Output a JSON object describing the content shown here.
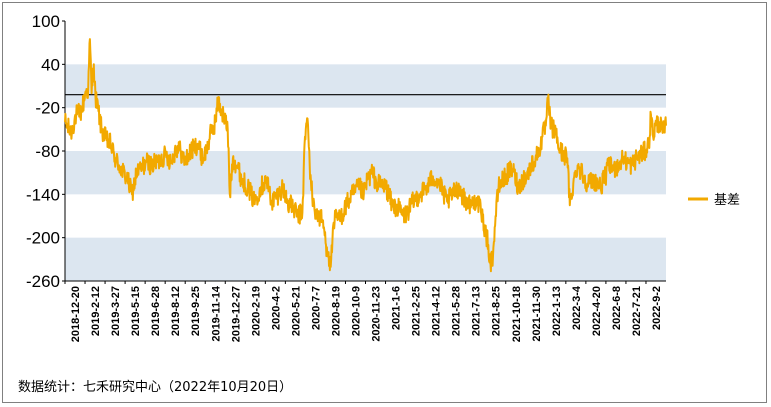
{
  "footer": {
    "source_text": "数据统计：七禾研究中心（2022年10月20日）"
  },
  "colors": {
    "series": "#F2A900",
    "band": "#DCE6F0",
    "axis": "#000000",
    "reference_line": "#000000"
  },
  "chart_data": {
    "type": "line",
    "title": "",
    "xlabel": "",
    "ylabel": "",
    "ylim": [
      -260,
      100
    ],
    "yticks": [
      100,
      40,
      -20,
      -80,
      -140,
      -200,
      -260
    ],
    "y_bands": [
      [
        -20,
        40
      ],
      [
        -140,
        -80
      ],
      [
        -260,
        -200
      ]
    ],
    "reference_line": -2,
    "grid": false,
    "legend_position": "right",
    "x_tick_labels": [
      "2018-12-20",
      "2019-2-12",
      "2019-3-27",
      "2019-5-15",
      "2019-6-28",
      "2019-8-12",
      "2019-9-25",
      "2019-11-14",
      "2019-12-27",
      "2020-2-19",
      "2020-4-2",
      "2020-5-21",
      "2020-7-7",
      "2020-8-19",
      "2020-10-9",
      "2020-11-23",
      "2021-1-6",
      "2021-2-25",
      "2021-4-12",
      "2021-5-28",
      "2021-7-13",
      "2021-8-25",
      "2021-10-18",
      "2021-11-30",
      "2022-1-13",
      "2022-3-4",
      "2022-4-20",
      "2022-6-8",
      "2022-7-21",
      "2022-9-2"
    ],
    "series": [
      {
        "name": "基差",
        "color": "#F2A900",
        "x_range": [
          "2018-12-20",
          "2022-10-20"
        ],
        "anchors": [
          [
            "2018-12-20",
            -40
          ],
          [
            "2019-1-3",
            -55
          ],
          [
            "2019-1-15",
            -30
          ],
          [
            "2019-1-28",
            -25
          ],
          [
            "2019-2-5",
            0
          ],
          [
            "2019-2-12",
            5
          ],
          [
            "2019-2-16",
            75
          ],
          [
            "2019-2-20",
            0
          ],
          [
            "2019-2-25",
            40
          ],
          [
            "2019-3-1",
            -5
          ],
          [
            "2019-3-8",
            -25
          ],
          [
            "2019-3-15",
            -50
          ],
          [
            "2019-3-27",
            -65
          ],
          [
            "2019-4-5",
            -70
          ],
          [
            "2019-4-15",
            -90
          ],
          [
            "2019-4-25",
            -100
          ],
          [
            "2019-5-15",
            -120
          ],
          [
            "2019-5-25",
            -140
          ],
          [
            "2019-6-5",
            -110
          ],
          [
            "2019-6-15",
            -105
          ],
          [
            "2019-6-28",
            -95
          ],
          [
            "2019-7-10",
            -100
          ],
          [
            "2019-7-25",
            -95
          ],
          [
            "2019-8-12",
            -85
          ],
          [
            "2019-8-25",
            -95
          ],
          [
            "2019-9-5",
            -75
          ],
          [
            "2019-9-15",
            -80
          ],
          [
            "2019-9-25",
            -95
          ],
          [
            "2019-10-10",
            -80
          ],
          [
            "2019-10-25",
            -70
          ],
          [
            "2019-11-5",
            -90
          ],
          [
            "2019-11-14",
            -80
          ],
          [
            "2019-11-25",
            -55
          ],
          [
            "2019-12-5",
            -40
          ],
          [
            "2019-12-12",
            -10
          ],
          [
            "2019-12-20",
            -25
          ],
          [
            "2019-12-27",
            -35
          ],
          [
            "2020-1-3",
            -50
          ],
          [
            "2020-1-8",
            -140
          ],
          [
            "2020-1-15",
            -90
          ],
          [
            "2020-1-25",
            -100
          ],
          [
            "2020-2-5",
            -120
          ],
          [
            "2020-2-19",
            -130
          ],
          [
            "2020-3-5",
            -150
          ],
          [
            "2020-3-20",
            -130
          ],
          [
            "2020-4-2",
            -120
          ],
          [
            "2020-4-15",
            -150
          ],
          [
            "2020-4-30",
            -140
          ],
          [
            "2020-5-10",
            -130
          ],
          [
            "2020-5-21",
            -150
          ],
          [
            "2020-6-5",
            -160
          ],
          [
            "2020-6-15",
            -170
          ],
          [
            "2020-6-25",
            -165
          ],
          [
            "2020-7-1",
            -60
          ],
          [
            "2020-7-7",
            -35
          ],
          [
            "2020-7-12",
            -100
          ],
          [
            "2020-7-20",
            -155
          ],
          [
            "2020-7-30",
            -170
          ],
          [
            "2020-8-10",
            -175
          ],
          [
            "2020-8-15",
            -190
          ],
          [
            "2020-8-19",
            -210
          ],
          [
            "2020-8-25",
            -220
          ],
          [
            "2020-8-28",
            -245
          ],
          [
            "2020-9-3",
            -205
          ],
          [
            "2020-9-10",
            -170
          ],
          [
            "2020-9-20",
            -175
          ],
          [
            "2020-10-9",
            -150
          ],
          [
            "2020-10-20",
            -140
          ],
          [
            "2020-11-5",
            -130
          ],
          [
            "2020-11-15",
            -140
          ],
          [
            "2020-11-23",
            -120
          ],
          [
            "2020-12-5",
            -110
          ],
          [
            "2020-12-15",
            -125
          ],
          [
            "2021-1-6",
            -130
          ],
          [
            "2021-1-20",
            -155
          ],
          [
            "2021-2-5",
            -160
          ],
          [
            "2021-2-15",
            -170
          ],
          [
            "2021-2-25",
            -165
          ],
          [
            "2021-3-10",
            -150
          ],
          [
            "2021-3-25",
            -140
          ],
          [
            "2021-4-12",
            -130
          ],
          [
            "2021-4-25",
            -115
          ],
          [
            "2021-5-10",
            -125
          ],
          [
            "2021-5-20",
            -140
          ],
          [
            "2021-5-28",
            -150
          ],
          [
            "2021-6-10",
            -140
          ],
          [
            "2021-6-25",
            -130
          ],
          [
            "2021-7-5",
            -145
          ],
          [
            "2021-7-13",
            -150
          ],
          [
            "2021-7-25",
            -155
          ],
          [
            "2021-8-5",
            -145
          ],
          [
            "2021-8-15",
            -165
          ],
          [
            "2021-8-25",
            -190
          ],
          [
            "2021-9-1",
            -210
          ],
          [
            "2021-9-6",
            -235
          ],
          [
            "2021-9-12",
            -225
          ],
          [
            "2021-9-18",
            -170
          ],
          [
            "2021-9-25",
            -130
          ],
          [
            "2021-10-5",
            -120
          ],
          [
            "2021-10-18",
            -110
          ],
          [
            "2021-10-28",
            -105
          ],
          [
            "2021-11-10",
            -130
          ],
          [
            "2021-11-20",
            -120
          ],
          [
            "2021-11-30",
            -115
          ],
          [
            "2021-12-10",
            -100
          ],
          [
            "2021-12-20",
            -90
          ],
          [
            "2021-12-28",
            -80
          ],
          [
            "2022-1-5",
            -60
          ],
          [
            "2022-1-13",
            -45
          ],
          [
            "2022-1-18",
            -10
          ],
          [
            "2022-1-25",
            -45
          ],
          [
            "2022-2-5",
            -55
          ],
          [
            "2022-2-15",
            -80
          ],
          [
            "2022-2-25",
            -85
          ],
          [
            "2022-3-4",
            -90
          ],
          [
            "2022-3-10",
            -155
          ],
          [
            "2022-3-18",
            -125
          ],
          [
            "2022-3-28",
            -100
          ],
          [
            "2022-4-8",
            -110
          ],
          [
            "2022-4-20",
            -125
          ],
          [
            "2022-5-5",
            -120
          ],
          [
            "2022-5-20",
            -130
          ],
          [
            "2022-6-1",
            -115
          ],
          [
            "2022-6-8",
            -100
          ],
          [
            "2022-6-20",
            -105
          ],
          [
            "2022-7-1",
            -100
          ],
          [
            "2022-7-12",
            -90
          ],
          [
            "2022-7-21",
            -95
          ],
          [
            "2022-8-1",
            -100
          ],
          [
            "2022-8-12",
            -90
          ],
          [
            "2022-8-22",
            -85
          ],
          [
            "2022-9-2",
            -80
          ],
          [
            "2022-9-10",
            -70
          ],
          [
            "2022-9-15",
            -30
          ],
          [
            "2022-9-20",
            -60
          ],
          [
            "2022-9-25",
            -45
          ],
          [
            "2022-10-5",
            -40
          ],
          [
            "2022-10-12",
            -55
          ],
          [
            "2022-10-20",
            -45
          ]
        ]
      }
    ]
  }
}
